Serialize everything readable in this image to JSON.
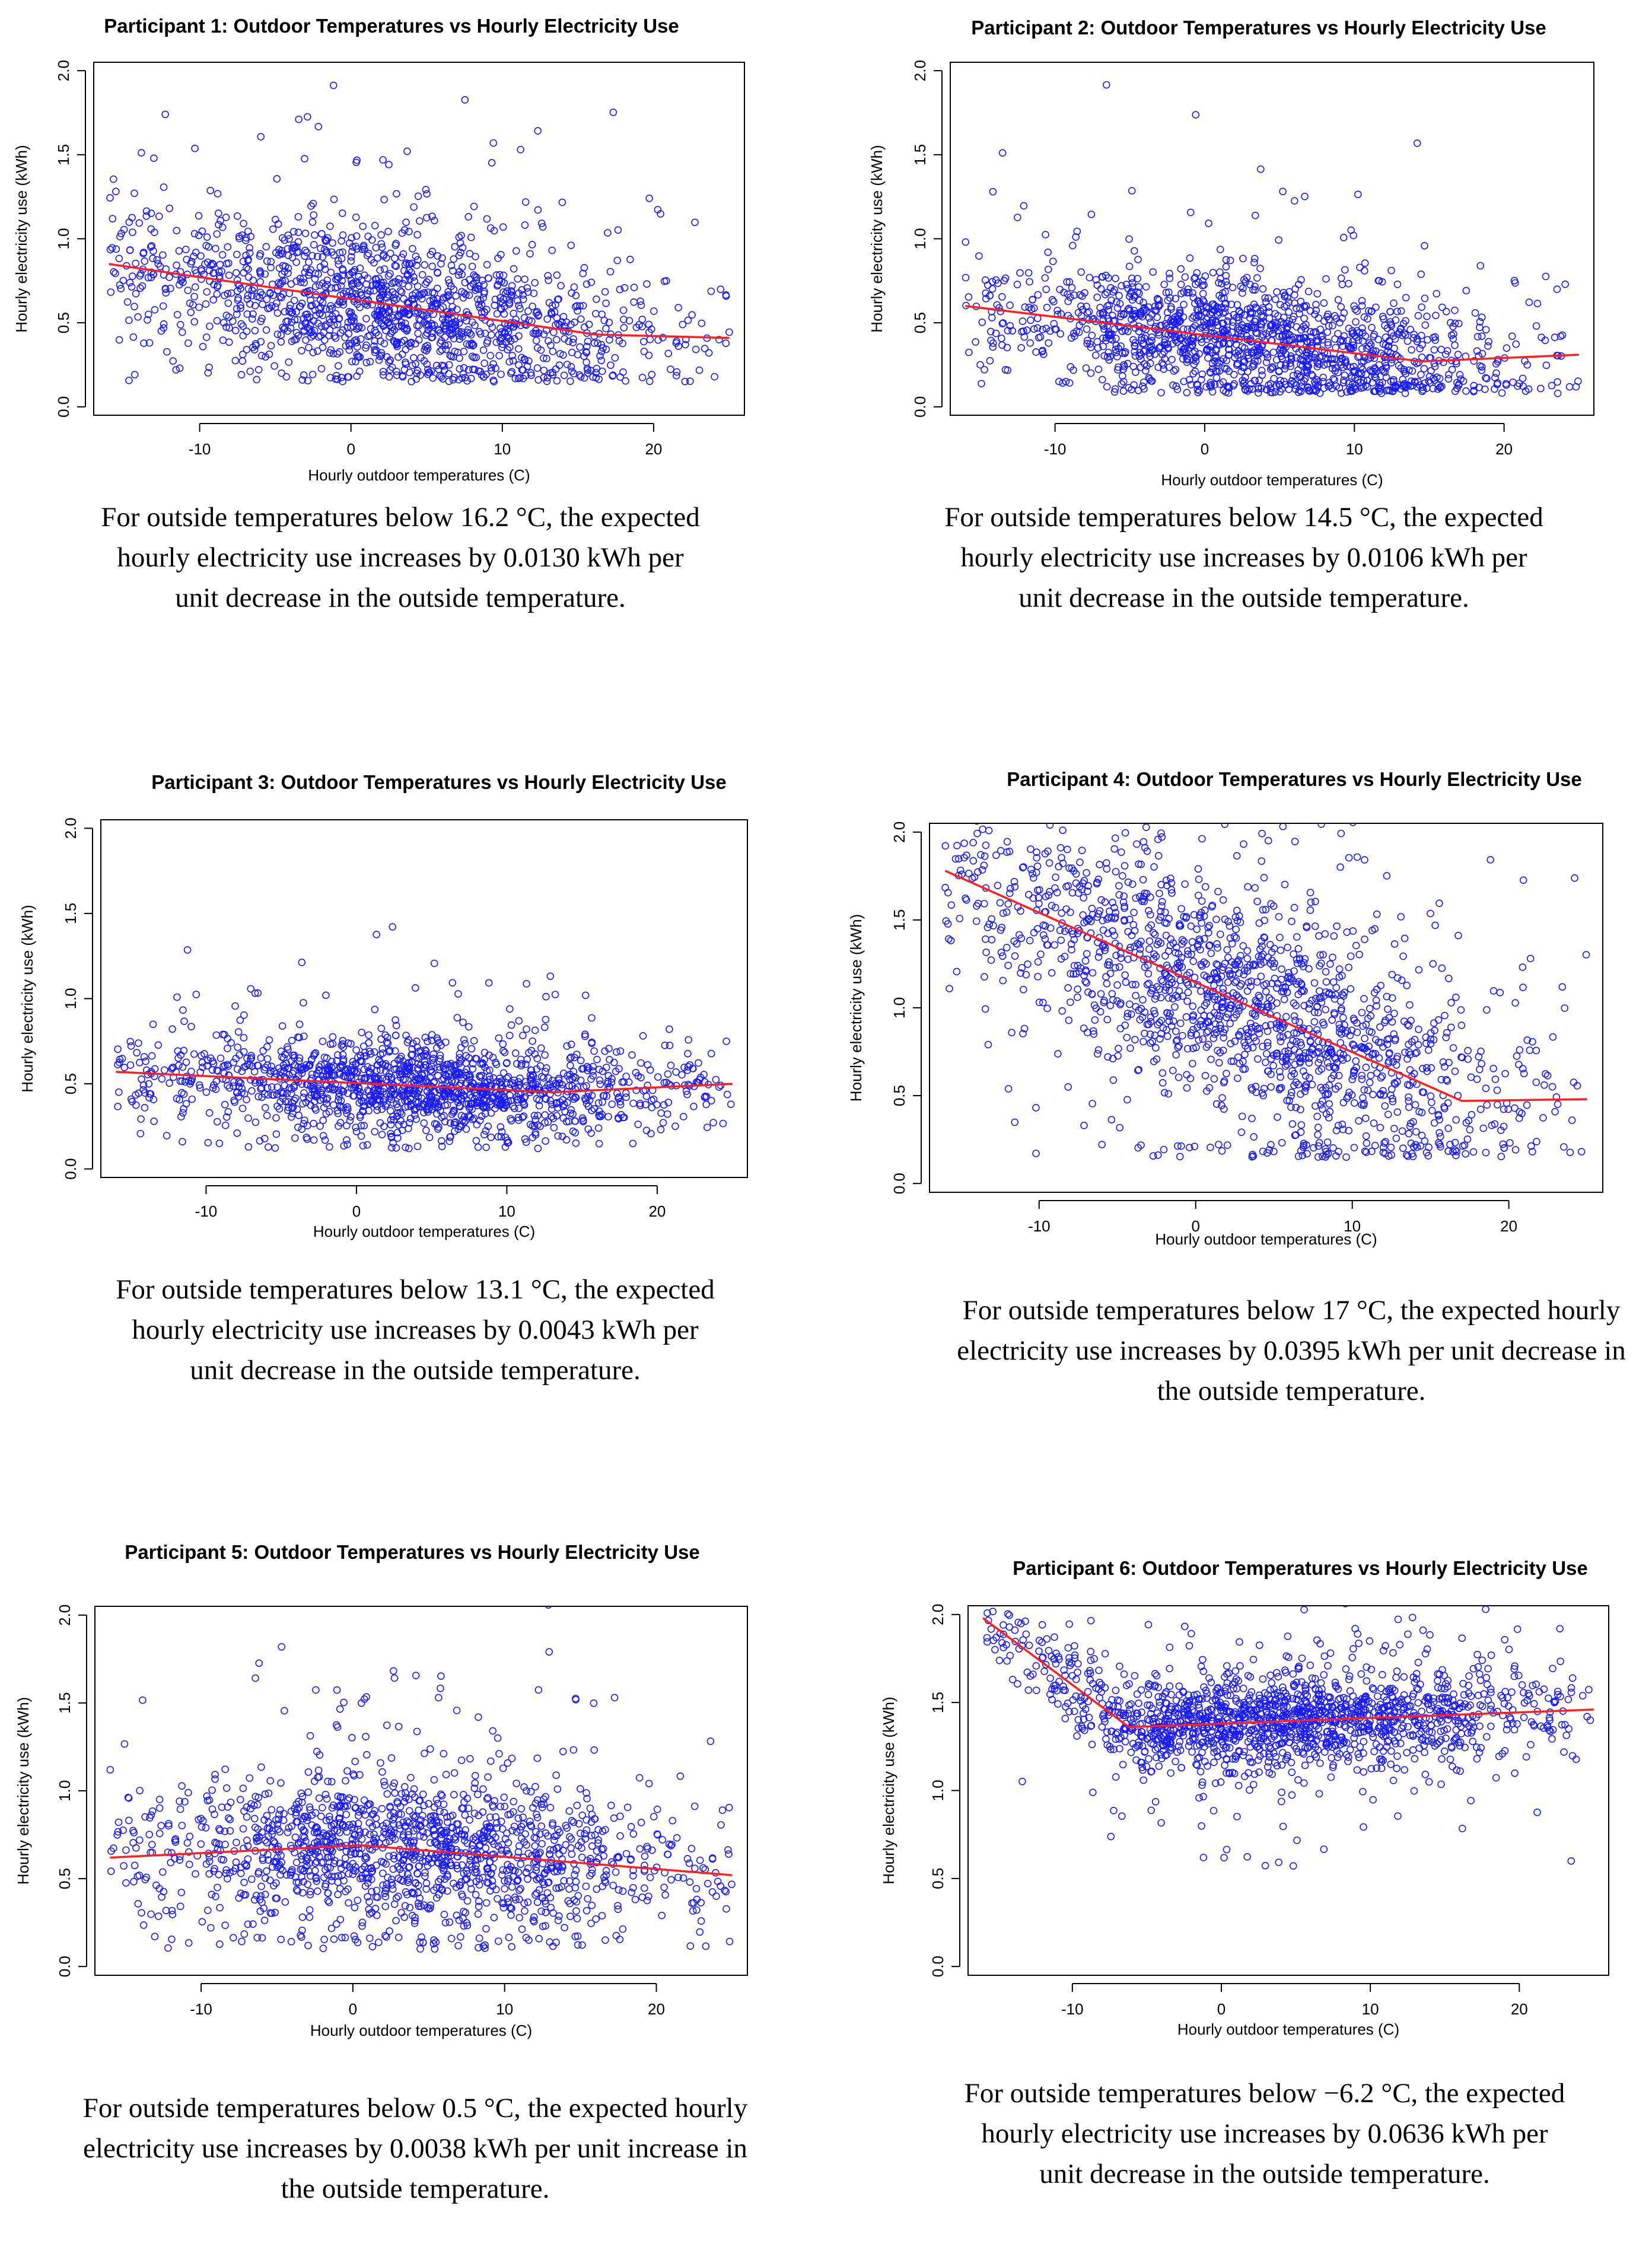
{
  "colors": {
    "points": "#1a1aff",
    "fit_line": "#ff1f1f",
    "axis": "#000000"
  },
  "chart_data": [
    {
      "type": "scatter",
      "title": "Participant 1: Outdoor Temperatures vs Hourly Electricity Use",
      "xlabel": "Hourly outdoor temperatures (C)",
      "ylabel": "Hourly electricity use (kWh)",
      "xlim": [
        -17,
        26
      ],
      "ylim": [
        -0.05,
        2.05
      ],
      "xticks": [
        -10,
        0,
        10,
        20
      ],
      "yticks": [
        0.0,
        0.5,
        1.0,
        1.5,
        2.0
      ],
      "xtick_labels": [
        "-10",
        "0",
        "10",
        "20"
      ],
      "ytick_labels": [
        "0.0",
        "0.5",
        "1.0",
        "1.5",
        "2.0"
      ],
      "fit_line": {
        "x": [
          -16,
          16.2,
          25
        ],
        "y": [
          0.85,
          0.43,
          0.41
        ]
      },
      "scatter_profile": {
        "n_points": 1500,
        "x_center": 3,
        "x_spread": 9,
        "y_center": 0.5,
        "y_spread": 0.35,
        "y_min": 0.15
      },
      "caption": "For outside temperatures below 16.2 °C, the expected hourly electricity use increases by 0.0130 kWh per unit decrease in the outside temperature."
    },
    {
      "type": "scatter",
      "title": "Participant 2: Outdoor Temperatures vs Hourly Electricity Use",
      "xlabel": "Hourly outdoor temperatures (C)",
      "ylabel": "Hourly electricity use (kWh)",
      "xlim": [
        -17,
        26
      ],
      "ylim": [
        -0.05,
        2.05
      ],
      "xticks": [
        -10,
        0,
        10,
        20
      ],
      "yticks": [
        0.0,
        0.5,
        1.0,
        1.5,
        2.0
      ],
      "xtick_labels": [
        "-10",
        "0",
        "10",
        "20"
      ],
      "ytick_labels": [
        "0.0",
        "0.5",
        "1.0",
        "1.5",
        "2.0"
      ],
      "fit_line": {
        "x": [
          -16,
          14.5,
          25
        ],
        "y": [
          0.6,
          0.27,
          0.31
        ]
      },
      "scatter_profile": {
        "n_points": 1500,
        "x_center": 3,
        "x_spread": 9,
        "y_center": 0.35,
        "y_spread": 0.3,
        "y_min": 0.08
      },
      "caption": "For outside temperatures below 14.5 °C, the expected hourly electricity use increases by 0.0106 kWh per unit decrease in the outside temperature."
    },
    {
      "type": "scatter",
      "title": "Participant 3: Outdoor Temperatures vs Hourly Electricity Use",
      "xlabel": "Hourly outdoor temperatures (C)",
      "ylabel": "Hourly electricity use (kWh)",
      "xlim": [
        -17,
        26
      ],
      "ylim": [
        -0.05,
        2.05
      ],
      "xticks": [
        -10,
        0,
        10,
        20
      ],
      "yticks": [
        0.0,
        0.5,
        1.0,
        1.5,
        2.0
      ],
      "xtick_labels": [
        "-10",
        "0",
        "10",
        "20"
      ],
      "ytick_labels": [
        "0.0",
        "0.5",
        "1.0",
        "1.5",
        "2.0"
      ],
      "fit_line": {
        "x": [
          -16,
          13.1,
          25
        ],
        "y": [
          0.57,
          0.45,
          0.5
        ]
      },
      "scatter_profile": {
        "n_points": 1500,
        "x_center": 4,
        "x_spread": 9,
        "y_center": 0.48,
        "y_spread": 0.22,
        "y_min": 0.12
      },
      "caption": "For outside temperatures below 13.1 °C, the expected hourly electricity use increases by 0.0043 kWh per unit decrease in the outside temperature."
    },
    {
      "type": "scatter",
      "title": "Participant 4: Outdoor Temperatures vs Hourly Electricity Use",
      "xlabel": "Hourly outdoor temperatures (C)",
      "ylabel": "Hourly electricity use (kWh)",
      "xlim": [
        -17,
        26
      ],
      "ylim": [
        -0.05,
        2.05
      ],
      "xticks": [
        -10,
        0,
        10,
        20
      ],
      "yticks": [
        0.0,
        0.5,
        1.0,
        1.5,
        2.0
      ],
      "xtick_labels": [
        "-10",
        "0",
        "10",
        "20"
      ],
      "ytick_labels": [
        "0.0",
        "0.5",
        "1.0",
        "1.5",
        "2.0"
      ],
      "fit_line": {
        "x": [
          -16,
          17,
          25
        ],
        "y": [
          1.78,
          0.47,
          0.48
        ]
      },
      "scatter_profile": {
        "n_points": 1600,
        "x_center": 3,
        "x_spread": 9,
        "y_center": 0.9,
        "y_spread": 0.55,
        "y_min": 0.15
      },
      "caption": "For outside temperatures below 17 °C, the expected hourly electricity use increases by 0.0395 kWh per unit decrease in the outside temperature."
    },
    {
      "type": "scatter",
      "title": "Participant 5: Outdoor Temperatures vs Hourly Electricity Use",
      "xlabel": "Hourly outdoor temperatures (C)",
      "ylabel": "Hourly electricity use (kWh)",
      "xlim": [
        -17,
        26
      ],
      "ylim": [
        -0.05,
        2.05
      ],
      "xticks": [
        -10,
        0,
        10,
        20
      ],
      "yticks": [
        0.0,
        0.5,
        1.0,
        1.5,
        2.0
      ],
      "xtick_labels": [
        "-10",
        "0",
        "10",
        "20"
      ],
      "ytick_labels": [
        "0.0",
        "0.5",
        "1.0",
        "1.5",
        "2.0"
      ],
      "fit_line": {
        "x": [
          -16,
          0.5,
          25
        ],
        "y": [
          0.62,
          0.69,
          0.52
        ]
      },
      "scatter_profile": {
        "n_points": 1500,
        "x_center": 4,
        "x_spread": 9,
        "y_center": 0.55,
        "y_spread": 0.35,
        "y_min": 0.1
      },
      "caption": "For outside temperatures below 0.5 °C, the expected hourly electricity use increases by 0.0038 kWh per unit increase in the outside temperature."
    },
    {
      "type": "scatter",
      "title": "Participant 6: Outdoor Temperatures vs Hourly Electricity Use",
      "xlabel": "Hourly outdoor temperatures (C)",
      "ylabel": "Hourly electricity use (kWh)",
      "xlim": [
        -17,
        26
      ],
      "ylim": [
        -0.05,
        2.05
      ],
      "xticks": [
        -10,
        0,
        10,
        20
      ],
      "yticks": [
        0.0,
        0.5,
        1.0,
        1.5,
        2.0
      ],
      "xtick_labels": [
        "-10",
        "0",
        "10",
        "20"
      ],
      "ytick_labels": [
        "0.0",
        "0.5",
        "1.0",
        "1.5",
        "2.0"
      ],
      "fit_line": {
        "x": [
          -16,
          -6.2,
          25
        ],
        "y": [
          1.98,
          1.36,
          1.46
        ]
      },
      "scatter_profile": {
        "n_points": 1600,
        "x_center": 4,
        "x_spread": 9,
        "y_center": 1.32,
        "y_spread": 0.22,
        "y_min": 0.55
      },
      "caption": "For outside temperatures below −6.2 °C, the expected hourly electricity use increases by 0.0636 kWh per unit decrease in the outside temperature."
    }
  ]
}
